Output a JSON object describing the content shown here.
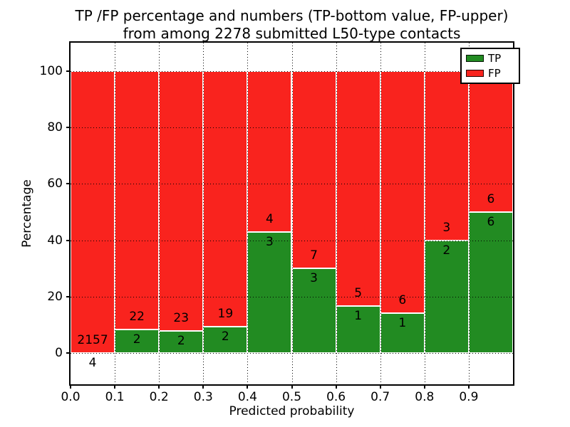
{
  "figure": {
    "background": "#ffffff"
  },
  "chart_data": {
    "type": "bar",
    "stacked": true,
    "title_line1": "TP /FP percentage and numbers (TP-bottom value, FP-upper)",
    "title_line2": "from among 2278 submitted L50-type contacts",
    "xlabel": "Predicted probability",
    "ylabel": "Percentage",
    "total_contacts": 2278,
    "xlim": [
      0.0,
      1.0
    ],
    "ylim": [
      -11,
      110
    ],
    "x_tick_labels": [
      "0.0",
      "0.1",
      "0.2",
      "0.3",
      "0.4",
      "0.5",
      "0.6",
      "0.7",
      "0.8",
      "0.9"
    ],
    "x_tick_values": [
      0.0,
      0.1,
      0.2,
      0.3,
      0.4,
      0.5,
      0.6,
      0.7,
      0.8,
      0.9
    ],
    "y_tick_values": [
      0,
      20,
      40,
      60,
      80,
      100
    ],
    "grid": "dotted-black-on-top",
    "legend_position": "upper-right",
    "legend": [
      {
        "label": "TP",
        "color": "#228B22"
      },
      {
        "label": "FP",
        "color": "#F9231E"
      }
    ],
    "colors": {
      "tp": "#228B22",
      "fp": "#F9231E",
      "bar_edge": "#FFFFFF",
      "grid": "#000000",
      "frame": "#000000"
    },
    "bar_width": 0.1,
    "bars": [
      {
        "x_start": 0.0,
        "x_end": 0.1,
        "tp_count": 4,
        "fp_count": 2157,
        "tp_pct": 0.185,
        "fp_pct": 99.815
      },
      {
        "x_start": 0.1,
        "x_end": 0.2,
        "tp_count": 2,
        "fp_count": 22,
        "tp_pct": 8.333,
        "fp_pct": 91.667
      },
      {
        "x_start": 0.2,
        "x_end": 0.3,
        "tp_count": 2,
        "fp_count": 23,
        "tp_pct": 8.0,
        "fp_pct": 92.0
      },
      {
        "x_start": 0.3,
        "x_end": 0.4,
        "tp_count": 2,
        "fp_count": 19,
        "tp_pct": 9.524,
        "fp_pct": 90.476
      },
      {
        "x_start": 0.4,
        "x_end": 0.5,
        "tp_count": 3,
        "fp_count": 4,
        "tp_pct": 42.857,
        "fp_pct": 57.143
      },
      {
        "x_start": 0.5,
        "x_end": 0.6,
        "tp_count": 3,
        "fp_count": 7,
        "tp_pct": 30.0,
        "fp_pct": 70.0
      },
      {
        "x_start": 0.6,
        "x_end": 0.7,
        "tp_count": 1,
        "fp_count": 5,
        "tp_pct": 16.667,
        "fp_pct": 83.333
      },
      {
        "x_start": 0.7,
        "x_end": 0.8,
        "tp_count": 1,
        "fp_count": 6,
        "tp_pct": 14.286,
        "fp_pct": 85.714
      },
      {
        "x_start": 0.8,
        "x_end": 0.9,
        "tp_count": 2,
        "fp_count": 3,
        "tp_pct": 40.0,
        "fp_pct": 60.0
      },
      {
        "x_start": 0.9,
        "x_end": 1.0,
        "tp_count": 6,
        "fp_count": 6,
        "tp_pct": 50.0,
        "fp_pct": 50.0
      }
    ]
  }
}
